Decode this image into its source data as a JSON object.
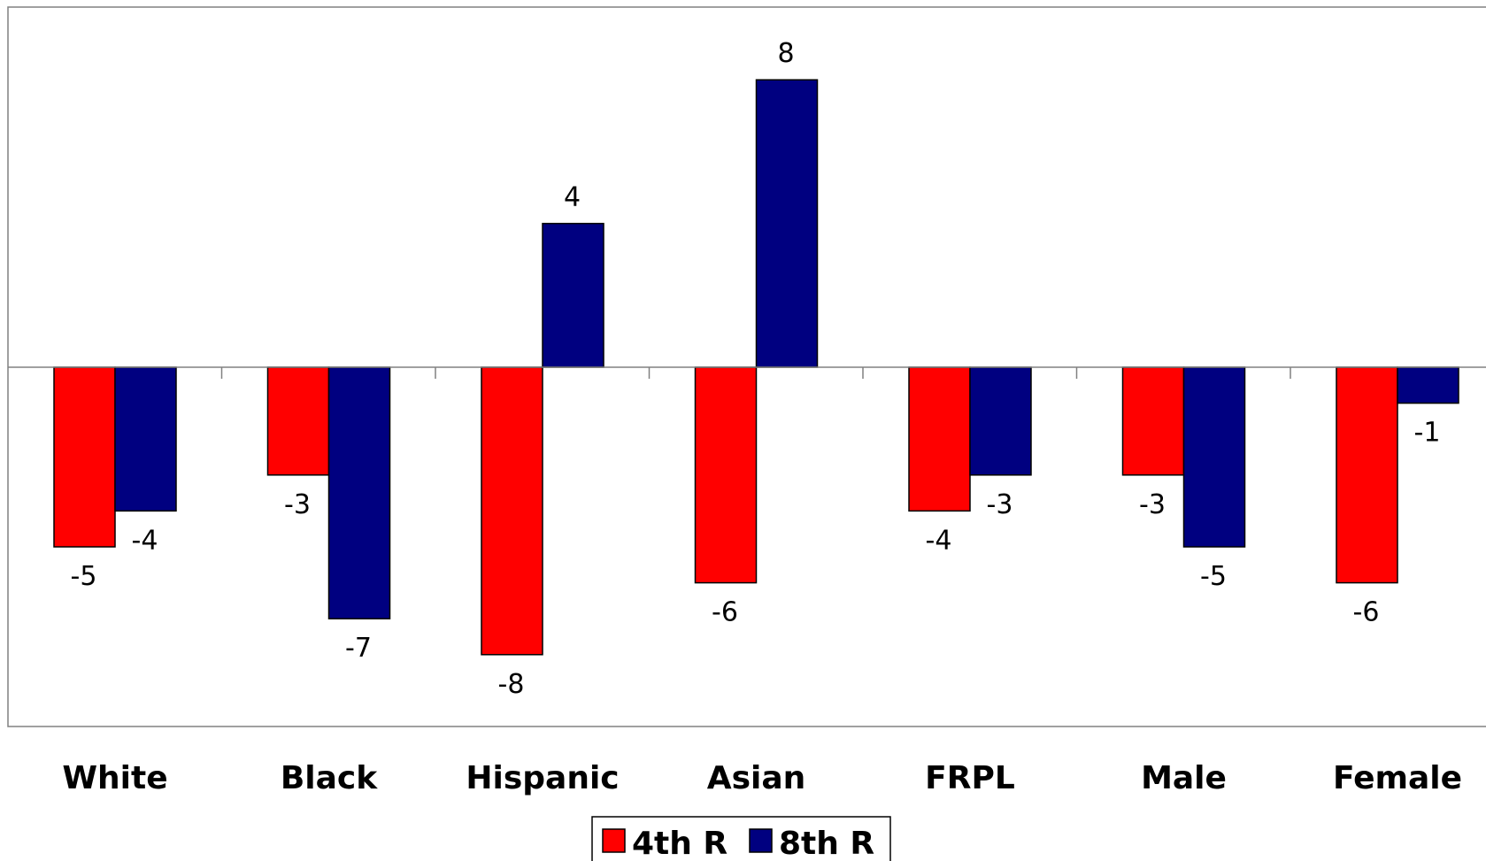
{
  "chart_data": {
    "type": "bar",
    "title": "",
    "categories": [
      "White",
      "Black",
      "Hispanic",
      "Asian",
      "FRPL",
      "Male",
      "Female"
    ],
    "series": [
      {
        "name": "4th R",
        "color": "#ff0000",
        "values": [
          -5,
          -3,
          -8,
          -6,
          -4,
          -3,
          -6
        ]
      },
      {
        "name": "8th R",
        "color": "#000080",
        "values": [
          -4,
          -7,
          4,
          8,
          -3,
          -5,
          -1
        ]
      }
    ],
    "ylim": [
      -10,
      10
    ],
    "grid": false,
    "legend_position": "bottom-center",
    "data_labels": true
  }
}
